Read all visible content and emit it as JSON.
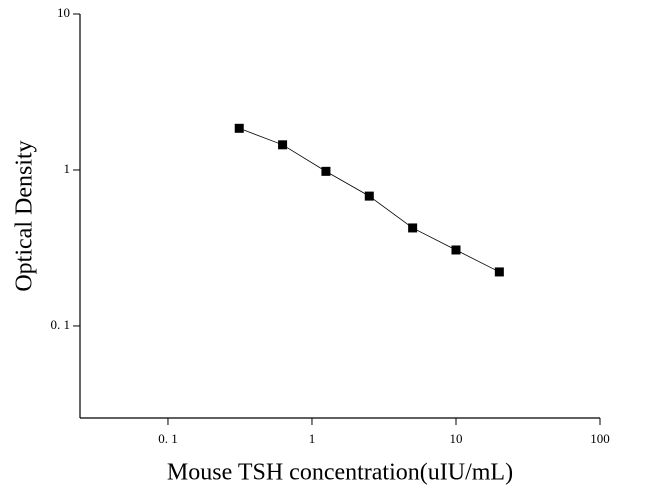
{
  "chart_data": {
    "type": "scatter",
    "x_label": "Mouse TSH concentration(uIU/mL)",
    "y_label": "Optical Density",
    "x": [
      0.3125,
      0.625,
      1.25,
      2.5,
      5,
      10,
      20
    ],
    "series": [
      {
        "color": "#000000",
        "values": [
          1.85,
          1.45,
          0.98,
          0.68,
          0.425,
          0.307,
          0.222
        ]
      }
    ],
    "xlim": [
      0.0245,
      100
    ],
    "ylim": [
      0.0257,
      10
    ],
    "xticks": [
      {
        "value": 0.1,
        "label": "0. 1"
      },
      1,
      10,
      100
    ],
    "yticks": [
      {
        "value": 0.1,
        "label": "0. 1"
      },
      1,
      10
    ],
    "xscale": "log",
    "yscale": "log",
    "grid": false
  }
}
